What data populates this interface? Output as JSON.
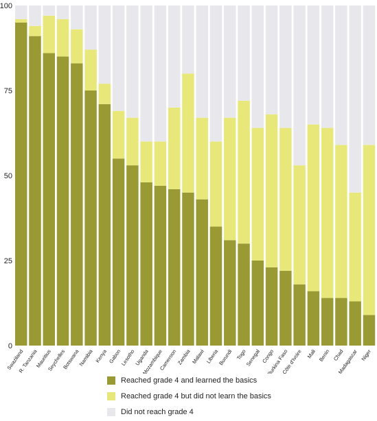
{
  "chart_data": {
    "type": "bar",
    "stacked": true,
    "categories": [
      "Swaziland",
      "U. R. Tanzania",
      "Mauritius",
      "Seychelles",
      "Botswana",
      "Namibia",
      "Kenya",
      "Gabon",
      "Lesotho",
      "Uganda",
      "Mozambique",
      "Cameroon",
      "Zambia",
      "Malawi",
      "Liberia",
      "Burundi",
      "Togo",
      "Senegal",
      "Congo",
      "Burkina Faso",
      "Côte d'Ivoire",
      "Mali",
      "Benin",
      "Chad",
      "Madagascar",
      "Niger"
    ],
    "series": [
      {
        "name": "Reached grade 4 and learned the basics",
        "color": "#9a9a34",
        "values": [
          95,
          91,
          86,
          85,
          83,
          75,
          71,
          55,
          53,
          48,
          47,
          46,
          45,
          43,
          35,
          31,
          30,
          25,
          23,
          22,
          18,
          16,
          14,
          14,
          13,
          9
        ]
      },
      {
        "name": "Reached grade 4 but did not learn the basics",
        "color": "#e8e87a",
        "values": [
          1,
          3,
          11,
          11,
          10,
          12,
          6,
          14,
          14,
          12,
          13,
          24,
          35,
          24,
          25,
          36,
          42,
          39,
          45,
          42,
          35,
          49,
          50,
          45,
          32,
          50
        ]
      },
      {
        "name": "Did not reach grade 4",
        "color": "#e8e8ec",
        "values": [
          4,
          6,
          3,
          4,
          7,
          13,
          23,
          31,
          33,
          40,
          40,
          30,
          20,
          33,
          40,
          33,
          28,
          36,
          32,
          36,
          47,
          35,
          36,
          41,
          55,
          41
        ]
      }
    ],
    "ylim": [
      0,
      100
    ],
    "yticks": [
      "0",
      "25",
      "50",
      "75",
      "100"
    ],
    "xlabel": "",
    "ylabel": "",
    "legend_position": "bottom"
  }
}
